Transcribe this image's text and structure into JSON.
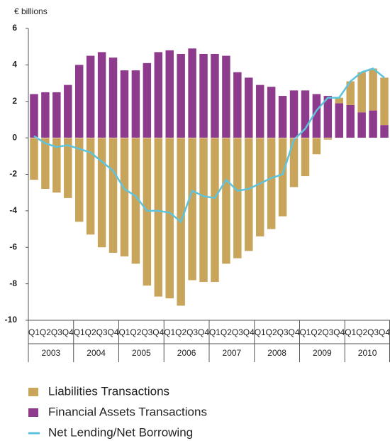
{
  "chart_data": {
    "type": "bar",
    "y_label": "€ billions",
    "categories": [
      "Q1",
      "Q2",
      "Q3",
      "Q4",
      "Q1",
      "Q2",
      "Q3",
      "Q4",
      "Q1",
      "Q2",
      "Q3",
      "Q4",
      "Q1",
      "Q2",
      "Q3",
      "Q4",
      "Q1",
      "Q2",
      "Q3",
      "Q4",
      "Q1",
      "Q2",
      "Q3",
      "Q4",
      "Q1",
      "Q2",
      "Q3",
      "Q4",
      "Q1",
      "Q2",
      "Q3",
      "Q4"
    ],
    "years": [
      "2003",
      "2004",
      "2005",
      "2006",
      "2007",
      "2008",
      "2009",
      "2010"
    ],
    "series": [
      {
        "name": "Liabilities Transactions",
        "color": "#c9a55c",
        "kind": "bar",
        "values": [
          -2.3,
          -2.8,
          -3.0,
          -3.3,
          -4.6,
          -5.3,
          -6.0,
          -6.3,
          -6.5,
          -6.9,
          -8.1,
          -8.7,
          -8.8,
          -9.2,
          -7.8,
          -7.9,
          -7.9,
          -6.9,
          -6.6,
          -6.2,
          -5.4,
          -5.0,
          -4.3,
          -2.7,
          -2.1,
          -0.9,
          -0.1,
          0.3,
          1.3,
          2.2,
          2.3,
          2.6
        ]
      },
      {
        "name": "Financial Assets Transactions",
        "color": "#8e3b8e",
        "kind": "bar",
        "values": [
          2.4,
          2.5,
          2.5,
          2.9,
          4.0,
          4.5,
          4.7,
          4.4,
          3.7,
          3.7,
          4.1,
          4.7,
          4.8,
          4.6,
          4.9,
          4.6,
          4.6,
          4.5,
          3.6,
          3.3,
          2.9,
          2.8,
          2.3,
          2.6,
          2.6,
          2.4,
          2.3,
          1.9,
          1.8,
          1.4,
          1.5,
          0.7
        ]
      },
      {
        "name": "Net Lending/Net Borrowing",
        "color": "#5ec3dc",
        "kind": "line",
        "values": [
          0.1,
          -0.3,
          -0.5,
          -0.4,
          -0.6,
          -0.8,
          -1.3,
          -1.8,
          -2.8,
          -3.2,
          -4.0,
          -4.0,
          -4.1,
          -4.6,
          -2.9,
          -3.2,
          -3.3,
          -2.3,
          -2.9,
          -2.8,
          -2.5,
          -2.2,
          -2.0,
          -0.1,
          0.5,
          1.5,
          2.2,
          2.2,
          3.1,
          3.6,
          3.8,
          3.3
        ]
      }
    ],
    "ylim": [
      -10,
      6
    ],
    "yticks": [
      -10,
      -8,
      -6,
      -4,
      -2,
      0,
      2,
      4,
      6
    ],
    "grid": false
  }
}
